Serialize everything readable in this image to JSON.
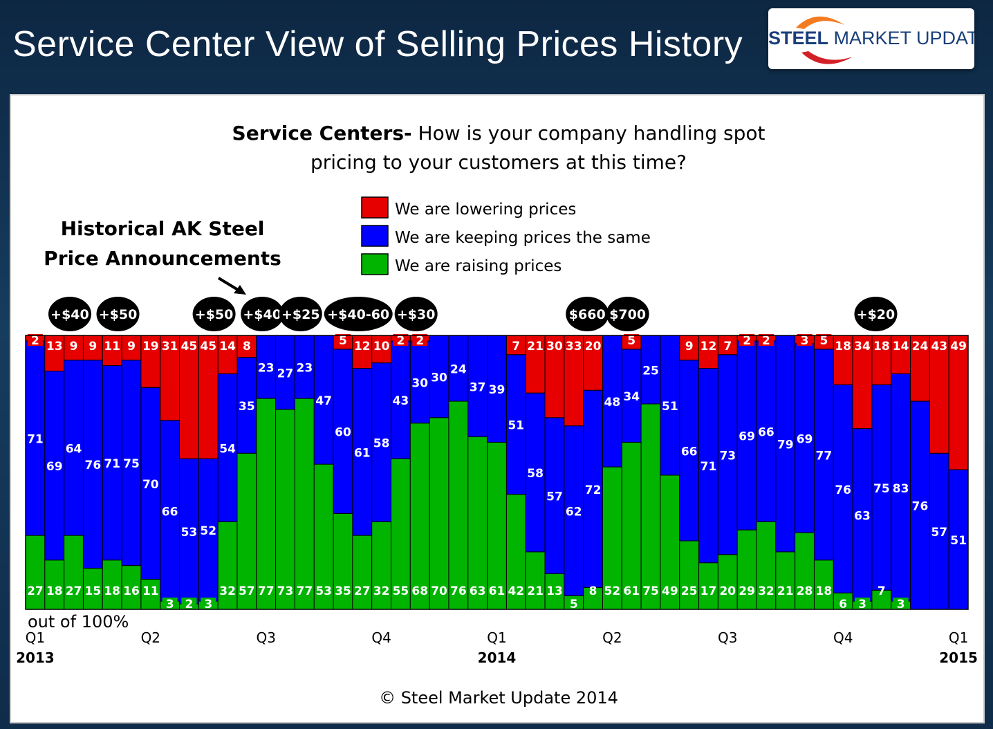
{
  "header": {
    "title": "Service Center View of Selling Prices History",
    "logo_bold": "STEEL",
    "logo_rest": " MARKET UPDATE"
  },
  "colors": {
    "lowering": "#e60000",
    "keeping": "#0000ff",
    "raising": "#00b400"
  },
  "chart_data": {
    "type": "stacked-bar",
    "title_bold": "Service Centers-",
    "title_rest": " How is your company handling spot",
    "title_line2": "pricing to your customers at this time?",
    "legend": [
      {
        "key": "lowering",
        "label": "We are lowering prices"
      },
      {
        "key": "keeping",
        "label": "We are keeping prices the same"
      },
      {
        "key": "raising",
        "label": "We are raising prices"
      }
    ],
    "series_order_bottom_to_top": [
      "raising",
      "keeping",
      "lowering"
    ],
    "lowering": [
      2,
      13,
      9,
      9,
      11,
      9,
      19,
      31,
      45,
      45,
      14,
      8,
      0,
      0,
      0,
      0,
      5,
      12,
      10,
      2,
      2,
      0,
      0,
      0,
      0,
      7,
      21,
      30,
      33,
      20,
      0,
      5,
      0,
      0,
      9,
      12,
      7,
      2,
      2,
      0,
      3,
      5,
      18,
      34,
      18,
      14,
      24,
      43,
      49
    ],
    "keeping": [
      71,
      69,
      64,
      76,
      71,
      75,
      70,
      66,
      53,
      52,
      54,
      35,
      23,
      27,
      23,
      47,
      60,
      61,
      58,
      43,
      30,
      30,
      24,
      37,
      39,
      51,
      58,
      57,
      62,
      72,
      48,
      34,
      25,
      51,
      66,
      71,
      73,
      69,
      66,
      79,
      69,
      77,
      76,
      63,
      75,
      83,
      76,
      57,
      51
    ],
    "raising": [
      27,
      18,
      27,
      15,
      18,
      16,
      11,
      3,
      2,
      3,
      32,
      57,
      77,
      73,
      77,
      53,
      35,
      27,
      32,
      55,
      68,
      70,
      76,
      63,
      61,
      42,
      21,
      13,
      5,
      8,
      52,
      61,
      75,
      49,
      25,
      17,
      20,
      29,
      32,
      21,
      28,
      18,
      6,
      3,
      7,
      3,
      0,
      0,
      0
    ],
    "ylim": [
      0,
      100
    ],
    "ylabel": "out of 100%",
    "x_ticks": [
      {
        "index": 0,
        "label": "Q1"
      },
      {
        "index": 6,
        "label": "Q2"
      },
      {
        "index": 12,
        "label": "Q3"
      },
      {
        "index": 18,
        "label": "Q4"
      },
      {
        "index": 24,
        "label": "Q1"
      },
      {
        "index": 30,
        "label": "Q2"
      },
      {
        "index": 36,
        "label": "Q3"
      },
      {
        "index": 42,
        "label": "Q4"
      },
      {
        "index": 48,
        "label": "Q1"
      }
    ],
    "year_labels": [
      {
        "index": 0,
        "label": "2013"
      },
      {
        "index": 24,
        "label": "2014"
      },
      {
        "index": 48,
        "label": "2015"
      }
    ],
    "annotation_title_line1": "Historical AK Steel",
    "annotation_title_line2": "Price Announcements",
    "announcements": [
      {
        "index": 1.8,
        "label": "+$40"
      },
      {
        "index": 4.3,
        "label": "+$50"
      },
      {
        "index": 9.3,
        "label": "+$50"
      },
      {
        "index": 11.8,
        "label": "+$40"
      },
      {
        "index": 13.8,
        "label": "+$25"
      },
      {
        "index": 16.8,
        "label": "+$40-60"
      },
      {
        "index": 19.8,
        "label": "+$30"
      },
      {
        "index": 28.7,
        "label": "$660"
      },
      {
        "index": 30.8,
        "label": "$700"
      },
      {
        "index": 43.7,
        "label": "+$20"
      }
    ],
    "footer": "© Steel Market Update 2014"
  }
}
